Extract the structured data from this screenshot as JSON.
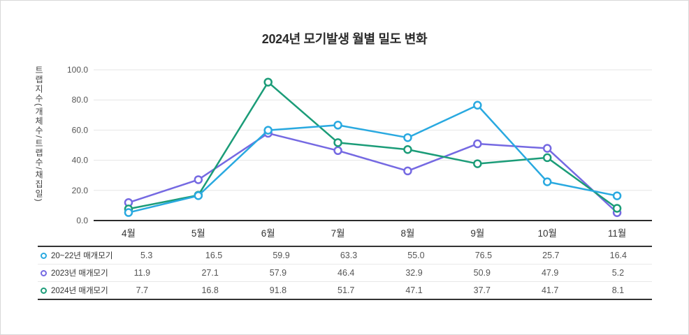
{
  "chart_data": {
    "type": "line",
    "title": "2024년 모기발생 월별 밀도 변화",
    "xlabel": "",
    "ylabel": "트랩지수(개체수/트랩수/채집일)",
    "categories": [
      "4월",
      "5월",
      "6월",
      "7월",
      "8월",
      "9월",
      "10월",
      "11월"
    ],
    "y_ticks": [
      100.0,
      80.0,
      60.0,
      40.0,
      20.0,
      0.0
    ],
    "y_tick_labels": [
      "100.0",
      "80.0",
      "60.0",
      "40.0",
      "20.0",
      "0.0"
    ],
    "ylim": [
      0,
      100
    ],
    "grid": "horizontal-only",
    "legend_position": "table-below-chart",
    "series": [
      {
        "name": "20~22년 매개모기",
        "color": "#29a9e0",
        "values": [
          5.3,
          16.5,
          59.9,
          63.3,
          55.0,
          76.5,
          25.7,
          16.4
        ]
      },
      {
        "name": "2023년 매개모기",
        "color": "#7569e2",
        "values": [
          11.9,
          27.1,
          57.9,
          46.4,
          32.9,
          50.9,
          47.9,
          5.2
        ]
      },
      {
        "name": "2024년 매개모기",
        "color": "#1b9c78",
        "values": [
          7.7,
          16.8,
          91.8,
          51.7,
          47.1,
          37.7,
          41.7,
          8.1
        ]
      }
    ],
    "colors": {
      "grid_line": "#e6e6e6",
      "axis_line": "#2b2b2b",
      "tick_text": "#555555",
      "month_text": "#333333",
      "marker_fill": "#ffffff"
    }
  }
}
